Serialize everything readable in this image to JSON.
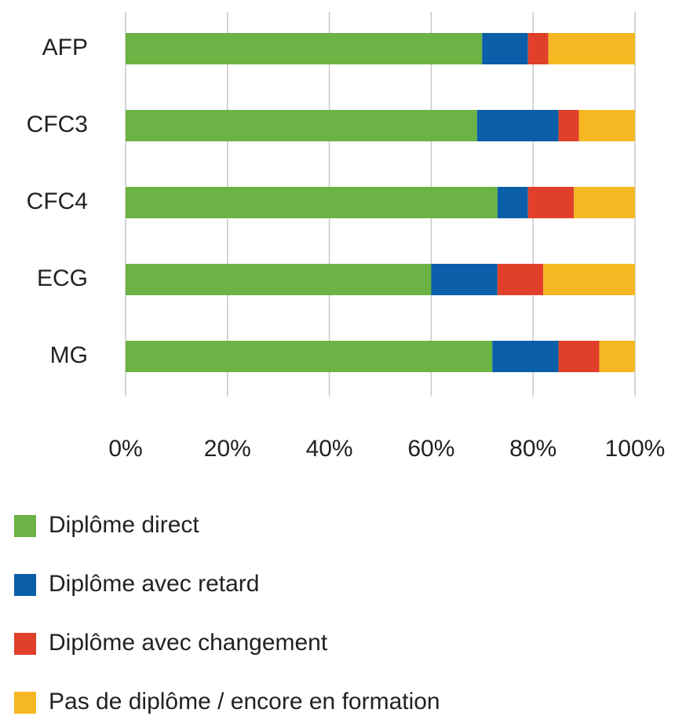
{
  "chart_data": {
    "type": "bar",
    "orientation": "horizontal",
    "stacked": true,
    "categories": [
      "AFP",
      "CFC3",
      "CFC4",
      "ECG",
      "MG"
    ],
    "series": [
      {
        "name": "Diplôme direct",
        "color": "#6ab344",
        "values": [
          70,
          69,
          73,
          60,
          72
        ]
      },
      {
        "name": "Diplôme avec retard",
        "color": "#0b5ea8",
        "values": [
          9,
          16,
          6,
          13,
          13
        ]
      },
      {
        "name": "Diplôme avec changement",
        "color": "#e0402a",
        "values": [
          4,
          4,
          9,
          9,
          8
        ]
      },
      {
        "name": "Pas de diplôme / encore en formation",
        "color": "#f5b823",
        "values": [
          17,
          11,
          12,
          18,
          7
        ]
      }
    ],
    "xlim": [
      0,
      100
    ],
    "xticks": [
      {
        "value": 0,
        "label": "0%"
      },
      {
        "value": 20,
        "label": "20%"
      },
      {
        "value": 40,
        "label": "40%"
      },
      {
        "value": 60,
        "label": "60%"
      },
      {
        "value": 80,
        "label": "80%"
      },
      {
        "value": 100,
        "label": "100%"
      }
    ],
    "grid": true,
    "legend": "bottom"
  }
}
